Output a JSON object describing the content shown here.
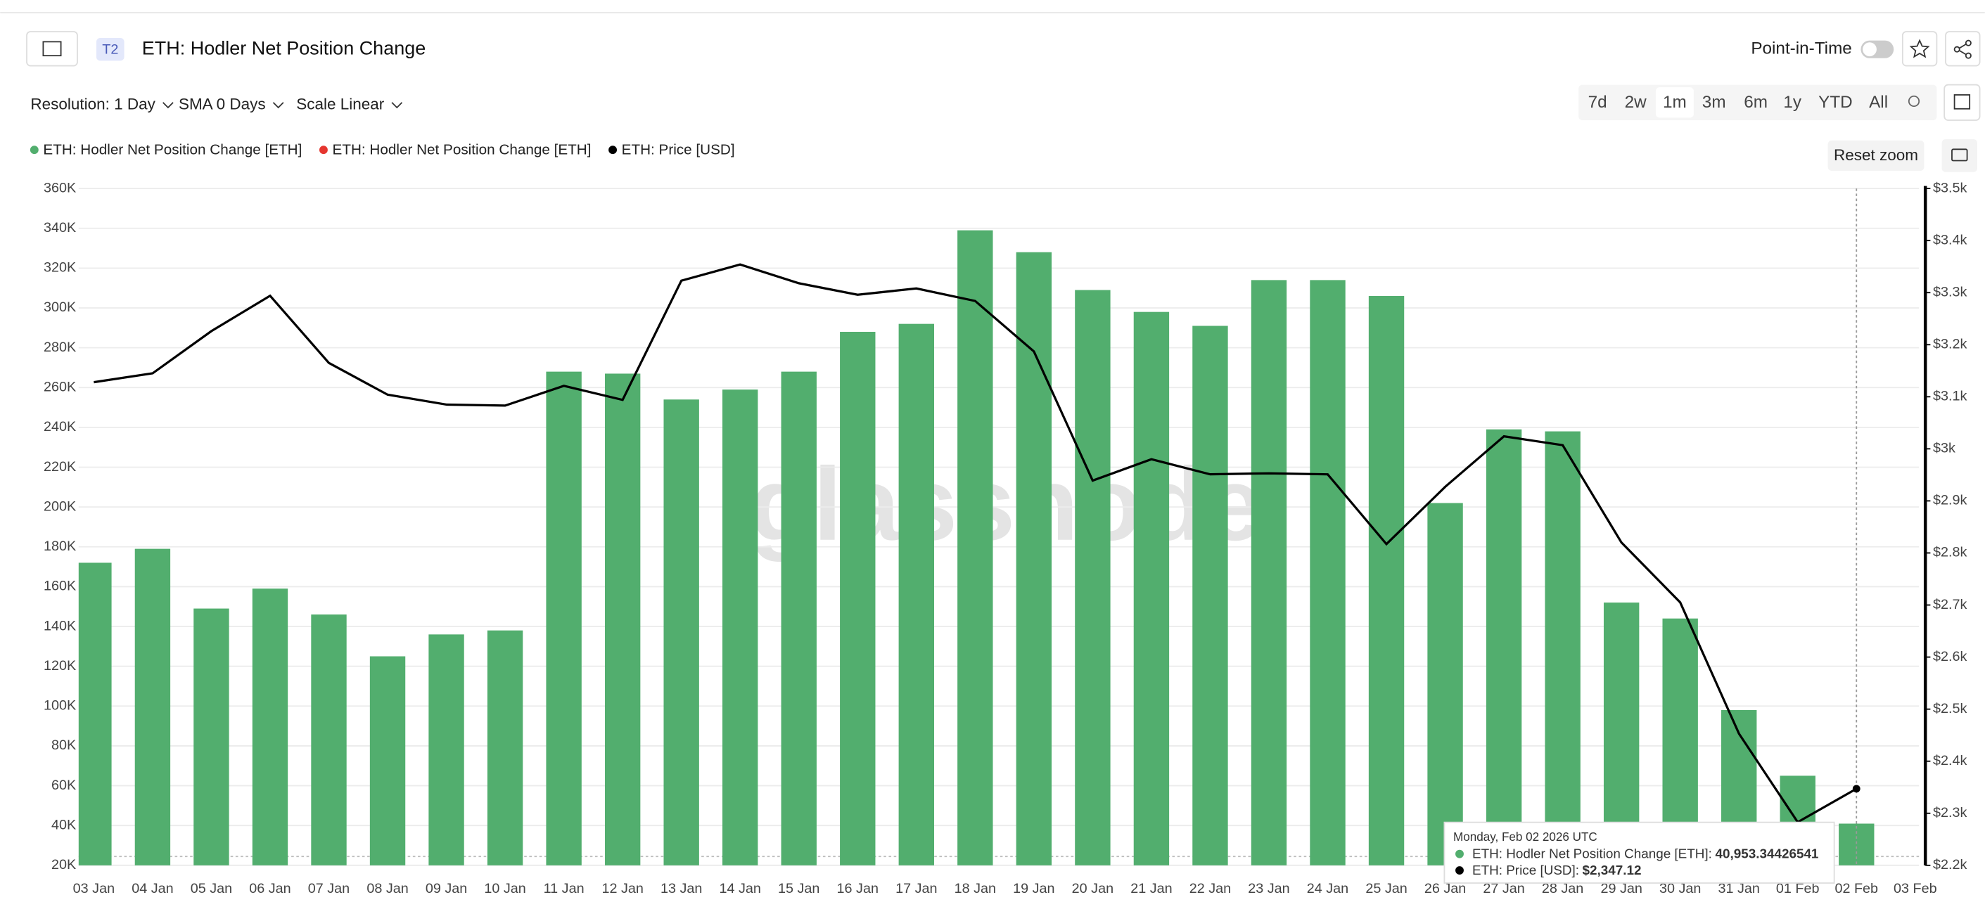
{
  "header": {
    "badge": "T2",
    "title": "ETH: Hodler Net Position Change",
    "point_in_time": "Point-in-Time"
  },
  "toolbar": {
    "controls": [
      "Resolution: 1 Day",
      "SMA 0 Days",
      "Scale Linear"
    ],
    "ranges": [
      "7d",
      "2w",
      "1m",
      "3m",
      "6m",
      "1y",
      "YTD",
      "All"
    ],
    "active_range": "1m"
  },
  "reset_zoom": "Reset zoom",
  "watermark": "glassnode",
  "chart_data": {
    "type": "bar",
    "categories": [
      "03 Jan",
      "04 Jan",
      "05 Jan",
      "06 Jan",
      "07 Jan",
      "08 Jan",
      "09 Jan",
      "10 Jan",
      "11 Jan",
      "12 Jan",
      "13 Jan",
      "14 Jan",
      "15 Jan",
      "16 Jan",
      "17 Jan",
      "18 Jan",
      "19 Jan",
      "20 Jan",
      "21 Jan",
      "22 Jan",
      "23 Jan",
      "24 Jan",
      "25 Jan",
      "26 Jan",
      "27 Jan",
      "28 Jan",
      "29 Jan",
      "30 Jan",
      "31 Jan",
      "01 Feb",
      "02 Feb",
      "03 Feb"
    ],
    "series": [
      {
        "name": "ETH: Hodler Net Position Change [ETH]",
        "color": "#52ae6e",
        "type": "bar",
        "values": [
          172000,
          179000,
          149000,
          159000,
          146000,
          125000,
          136000,
          138000,
          268000,
          267000,
          254000,
          259000,
          268000,
          288000,
          292000,
          339000,
          328000,
          309000,
          298000,
          291000,
          314000,
          314000,
          306000,
          202000,
          239000,
          238000,
          152000,
          144000,
          98000,
          65000,
          40953.34426541,
          null
        ]
      },
      {
        "name": "ETH: Hodler Net Position Change [ETH]",
        "color": "#e5362f",
        "type": "bar",
        "values": [
          null,
          null,
          null,
          null,
          null,
          null,
          null,
          null,
          null,
          null,
          null,
          null,
          null,
          null,
          null,
          null,
          null,
          null,
          null,
          null,
          null,
          null,
          null,
          null,
          null,
          null,
          null,
          null,
          null,
          null,
          null,
          null
        ]
      },
      {
        "name": "ETH: Price [USD]",
        "color": "#000000",
        "type": "line",
        "axis": "y2",
        "values": [
          3128,
          3145,
          3226,
          3294,
          3165,
          3104,
          3085,
          3083,
          3121,
          3094,
          3323,
          3354,
          3318,
          3296,
          3308,
          3284,
          3187,
          2939,
          2980,
          2951,
          2953,
          2951,
          2817,
          2927,
          3024,
          3007,
          2820,
          2705,
          2453,
          2283,
          2347.12,
          null
        ]
      }
    ],
    "ylim": [
      20000,
      360000
    ],
    "yticks": [
      {
        "value": 20000,
        "label": "20K"
      },
      {
        "value": 40000,
        "label": "40K"
      },
      {
        "value": 60000,
        "label": "60K"
      },
      {
        "value": 80000,
        "label": "80K"
      },
      {
        "value": 100000,
        "label": "100K"
      },
      {
        "value": 120000,
        "label": "120K"
      },
      {
        "value": 140000,
        "label": "140K"
      },
      {
        "value": 160000,
        "label": "160K"
      },
      {
        "value": 180000,
        "label": "180K"
      },
      {
        "value": 200000,
        "label": "200K"
      },
      {
        "value": 220000,
        "label": "220K"
      },
      {
        "value": 240000,
        "label": "240K"
      },
      {
        "value": 260000,
        "label": "260K"
      },
      {
        "value": 280000,
        "label": "280K"
      },
      {
        "value": 300000,
        "label": "300K"
      },
      {
        "value": 320000,
        "label": "320K"
      },
      {
        "value": 340000,
        "label": "340K"
      },
      {
        "value": 360000,
        "label": "360K"
      }
    ],
    "y2lim": [
      2200,
      3500
    ],
    "y2ticks": [
      {
        "value": 2200,
        "label": "$2.2k"
      },
      {
        "value": 2300,
        "label": "$2.3k"
      },
      {
        "value": 2400,
        "label": "$2.4k"
      },
      {
        "value": 2500,
        "label": "$2.5k"
      },
      {
        "value": 2600,
        "label": "$2.6k"
      },
      {
        "value": 2700,
        "label": "$2.7k"
      },
      {
        "value": 2800,
        "label": "$2.8k"
      },
      {
        "value": 2900,
        "label": "$2.9k"
      },
      {
        "value": 3000,
        "label": "$3k"
      },
      {
        "value": 3100,
        "label": "$3.1k"
      },
      {
        "value": 3200,
        "label": "$3.2k"
      },
      {
        "value": 3300,
        "label": "$3.3k"
      },
      {
        "value": 3400,
        "label": "$3.4k"
      },
      {
        "value": 3500,
        "label": "$3.5k"
      }
    ],
    "grid": true
  },
  "tooltip": {
    "date": "Monday, Feb 02 2026 UTC",
    "rows": [
      {
        "label": "ETH: Hodler Net Position Change [ETH]:",
        "value": "40,953.34426541"
      },
      {
        "label": "ETH: Price [USD]:",
        "value": "$2,347.12"
      }
    ]
  }
}
